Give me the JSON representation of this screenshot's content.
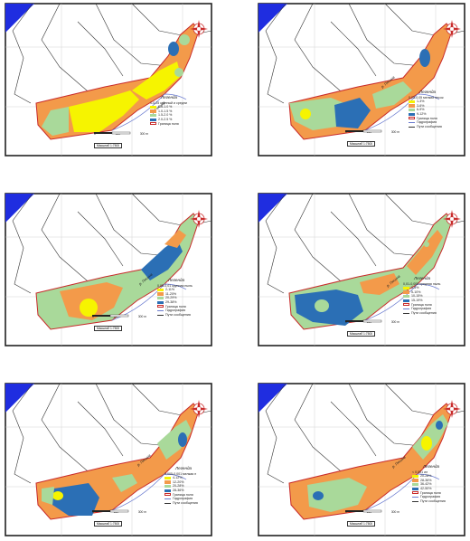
{
  "colors": {
    "sea": "#1f2de0",
    "outline": "#c82a2a",
    "yellow": "#f6f400",
    "orange": "#f39a4a",
    "green": "#a9d99a",
    "blue": "#2b6fb5",
    "hydro": "#6a7bd0"
  },
  "common": {
    "river_label": "р. Пясина",
    "scale_0": "0",
    "scale_150": "150",
    "scale_300": "300 m",
    "scale_caption": "Масштаб 1:7500",
    "field_boundary": "Граница поля",
    "hydrography": "Гидрография",
    "roads": "Пути сообщения",
    "north_icon": "compass-rose-icon"
  },
  "maps": [
    {
      "legend_title": "Легенда",
      "legend_subtitle": "1-0,25 крупный и средни",
      "classes": [
        {
          "label": "0.5-1.0 %",
          "color": "#f6f400"
        },
        {
          "label": "1.0-1.5 %",
          "color": "#f39a4a"
        },
        {
          "label": "1.5-2.0 %",
          "color": "#a9d99a"
        },
        {
          "label": "2.0-2.5 %",
          "color": "#2b6fb5"
        }
      ]
    },
    {
      "legend_title": "Легенда",
      "legend_subtitle": "0,25-0,05 мелкий песок",
      "classes": [
        {
          "label": "1-3%",
          "color": "#f6f400"
        },
        {
          "label": "3-6%",
          "color": "#f39a4a"
        },
        {
          "label": "6-9%",
          "color": "#a9d99a"
        },
        {
          "label": "9-12%",
          "color": "#2b6fb5"
        }
      ]
    },
    {
      "legend_title": "Легенда",
      "legend_subtitle": "0,05-0,01 крупная пыль",
      "classes": [
        {
          "label": "2-11%",
          "color": "#f6f400"
        },
        {
          "label": "11-20%",
          "color": "#f39a4a"
        },
        {
          "label": "20-29%",
          "color": "#a9d99a"
        },
        {
          "label": "29-38%",
          "color": "#2b6fb5"
        }
      ]
    },
    {
      "legend_title": "Легенда",
      "legend_subtitle": "0,01-0,005 средняя пыль",
      "classes": [
        {
          "label": "1-5%",
          "color": "#f6f400"
        },
        {
          "label": "5-10%",
          "color": "#f39a4a"
        },
        {
          "label": "10-15%",
          "color": "#a9d99a"
        },
        {
          "label": "15-19%",
          "color": "#2b6fb5"
        }
      ]
    },
    {
      "legend_title": "Легенда",
      "legend_subtitle": "0,005-0,001 мелкая п",
      "classes": [
        {
          "label": "4-12%",
          "color": "#f6f400"
        },
        {
          "label": "12-20%",
          "color": "#f39a4a"
        },
        {
          "label": "20-28%",
          "color": "#a9d99a"
        },
        {
          "label": "28-36%",
          "color": "#2b6fb5"
        }
      ]
    },
    {
      "legend_title": "Легенда",
      "legend_subtitle": "< 0,001 ил",
      "classes": [
        {
          "label": "20-28%",
          "color": "#f6f400"
        },
        {
          "label": "28-36%",
          "color": "#f39a4a"
        },
        {
          "label": "36-42%",
          "color": "#a9d99a"
        },
        {
          "label": "42-50%",
          "color": "#2b6fb5"
        }
      ]
    }
  ]
}
